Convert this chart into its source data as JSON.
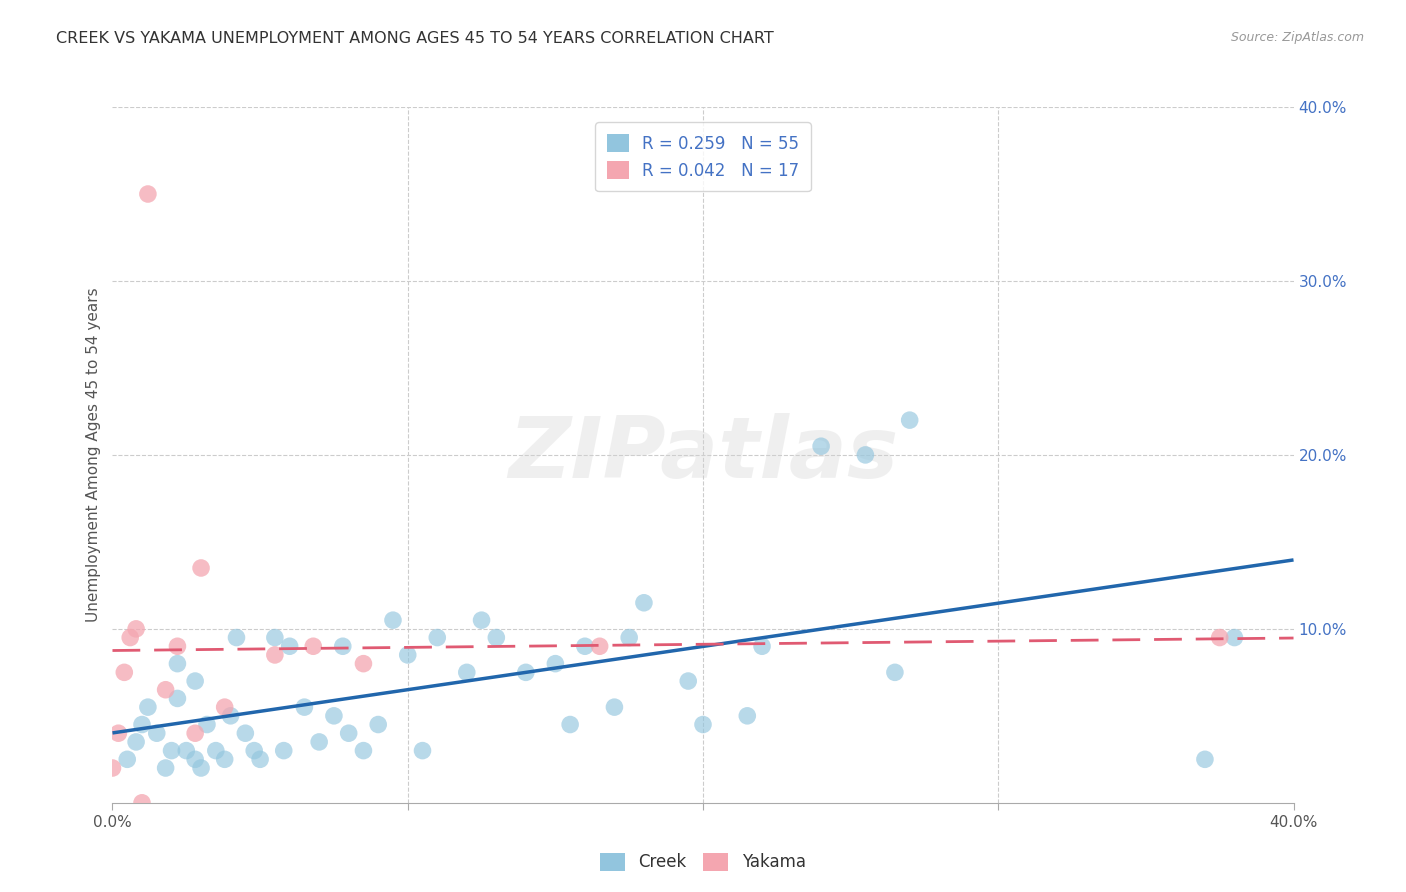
{
  "title": "CREEK VS YAKAMA UNEMPLOYMENT AMONG AGES 45 TO 54 YEARS CORRELATION CHART",
  "source": "Source: ZipAtlas.com",
  "ylabel": "Unemployment Among Ages 45 to 54 years",
  "xlim": [
    0,
    0.4
  ],
  "ylim": [
    0,
    0.4
  ],
  "xtick_labels": [
    "0.0%",
    "",
    "",
    "",
    "40.0%"
  ],
  "xtick_vals": [
    0.0,
    0.1,
    0.2,
    0.3,
    0.4
  ],
  "ytick_vals_right": [
    0.1,
    0.2,
    0.3,
    0.4
  ],
  "ytick_labels_right": [
    "10.0%",
    "20.0%",
    "30.0%",
    "40.0%"
  ],
  "creek_color": "#92c5de",
  "yakama_color": "#f4a6b0",
  "creek_line_color": "#2166ac",
  "yakama_line_color": "#e05a72",
  "creek_R": "0.259",
  "creek_N": "55",
  "yakama_R": "0.042",
  "yakama_N": "17",
  "legend_label_creek": "Creek",
  "legend_label_yakama": "Yakama",
  "watermark": "ZIPatlas",
  "creek_x": [
    0.005,
    0.008,
    0.01,
    0.012,
    0.015,
    0.018,
    0.02,
    0.022,
    0.022,
    0.025,
    0.028,
    0.028,
    0.03,
    0.032,
    0.035,
    0.038,
    0.04,
    0.042,
    0.045,
    0.048,
    0.05,
    0.055,
    0.058,
    0.06,
    0.065,
    0.07,
    0.075,
    0.078,
    0.08,
    0.085,
    0.09,
    0.095,
    0.1,
    0.105,
    0.11,
    0.12,
    0.125,
    0.13,
    0.14,
    0.15,
    0.155,
    0.16,
    0.17,
    0.175,
    0.18,
    0.195,
    0.2,
    0.215,
    0.22,
    0.24,
    0.255,
    0.265,
    0.27,
    0.37,
    0.38
  ],
  "creek_y": [
    0.025,
    0.035,
    0.045,
    0.055,
    0.04,
    0.02,
    0.03,
    0.06,
    0.08,
    0.03,
    0.025,
    0.07,
    0.02,
    0.045,
    0.03,
    0.025,
    0.05,
    0.095,
    0.04,
    0.03,
    0.025,
    0.095,
    0.03,
    0.09,
    0.055,
    0.035,
    0.05,
    0.09,
    0.04,
    0.03,
    0.045,
    0.105,
    0.085,
    0.03,
    0.095,
    0.075,
    0.105,
    0.095,
    0.075,
    0.08,
    0.045,
    0.09,
    0.055,
    0.095,
    0.115,
    0.07,
    0.045,
    0.05,
    0.09,
    0.205,
    0.2,
    0.075,
    0.22,
    0.025,
    0.095
  ],
  "yakama_x": [
    0.0,
    0.002,
    0.004,
    0.006,
    0.008,
    0.01,
    0.012,
    0.018,
    0.022,
    0.028,
    0.03,
    0.038,
    0.055,
    0.068,
    0.085,
    0.165,
    0.375
  ],
  "yakama_y": [
    0.02,
    0.04,
    0.075,
    0.095,
    0.1,
    0.0,
    0.35,
    0.065,
    0.09,
    0.04,
    0.135,
    0.055,
    0.085,
    0.09,
    0.08,
    0.09,
    0.095
  ]
}
